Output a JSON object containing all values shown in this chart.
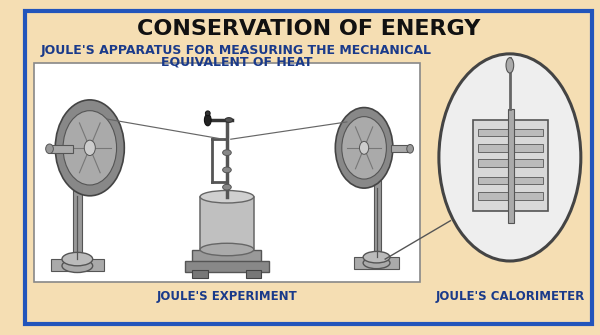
{
  "bg_color": "#F5DEB3",
  "outer_border_color": "#2255BB",
  "outer_border_lw": 3,
  "title": "CONSERVATION OF ENERGY",
  "title_fontsize": 16,
  "title_weight": "bold",
  "title_color": "#111111",
  "subtitle_line1": "JOULE'S APPARATUS FOR MEASURING THE MECHANICAL",
  "subtitle_line2": "EQUIVALENT OF HEAT",
  "subtitle_fontsize": 9,
  "subtitle_weight": "bold",
  "subtitle_color": "#1a3a8a",
  "label_experiment": "JOULE'S EXPERIMENT",
  "label_calorimeter": "JOULE'S CALORIMETER",
  "label_fontsize": 8.5,
  "label_color": "#1a3a8a",
  "inner_box_color": "#ffffff",
  "inner_box_edge": "#888888"
}
